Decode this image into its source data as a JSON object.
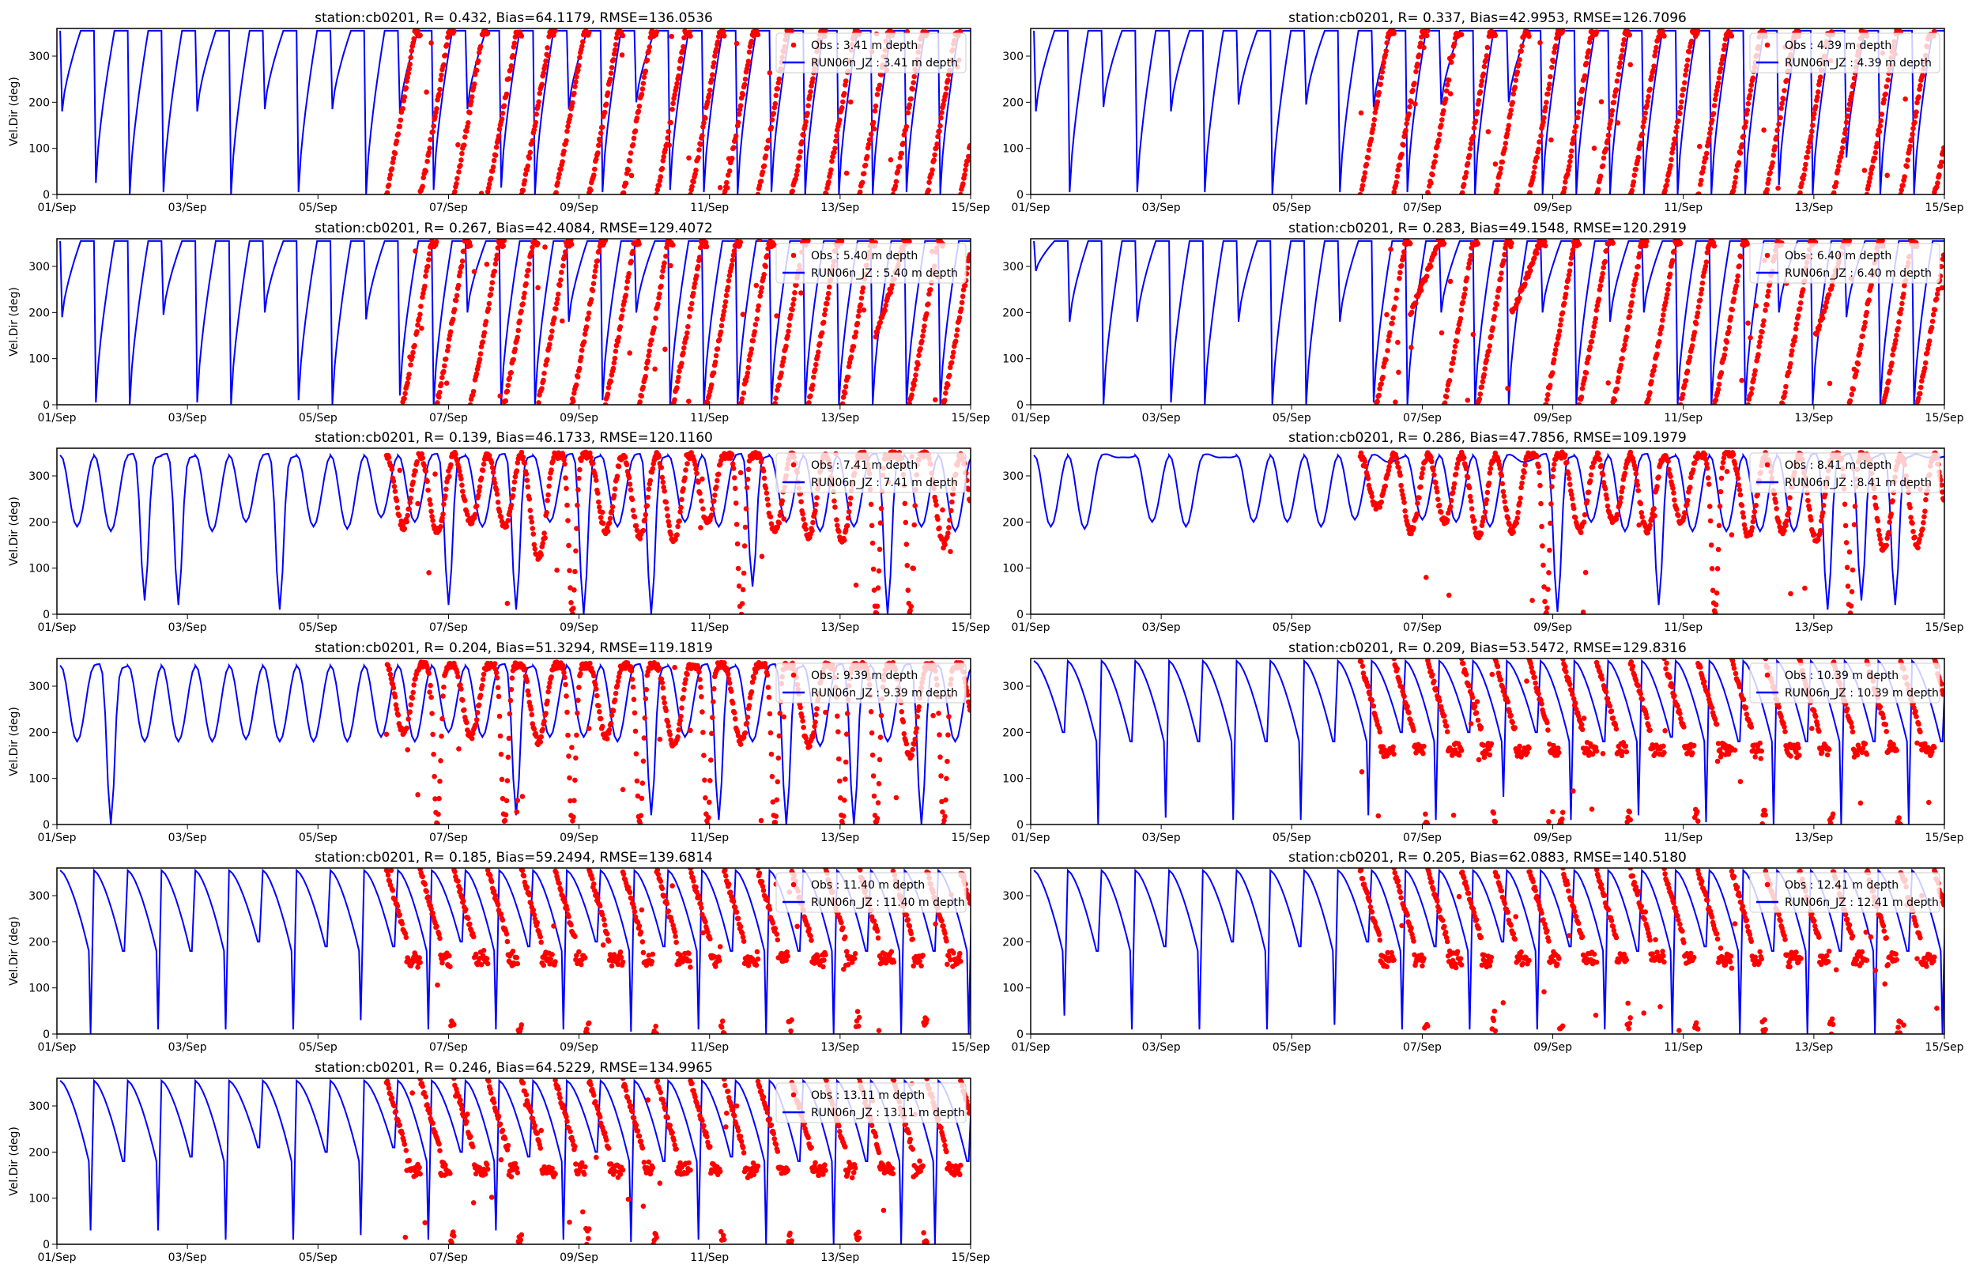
{
  "chart_data": [
    {
      "type": "line+scatter",
      "title": "station:cb0201, R= 0.432, Bias=64.1179, RMSE=136.0536",
      "ylabel": "Vel.Dir (deg)",
      "legend": [
        "Obs : 3.41 m depth",
        "RUN06n_JZ : 3.41 m depth"
      ],
      "shape": "rising",
      "model_trough_deg": [
        180,
        25,
        0,
        5,
        180,
        0,
        185,
        5,
        185,
        0,
        180,
        10,
        185,
        15,
        0,
        185,
        5,
        200,
        10,
        5,
        0,
        5,
        0,
        0,
        0,
        5,
        0
      ],
      "obs_start_day": 5.05,
      "obs_low_deg": [
        0,
        0,
        0,
        5,
        0,
        0,
        0,
        0,
        0,
        0,
        0,
        0,
        0,
        0,
        0,
        0,
        0,
        0
      ]
    },
    {
      "type": "line+scatter",
      "title": "station:cb0201, R= 0.337, Bias=42.9953, RMSE=126.7096",
      "ylabel": "",
      "legend": [
        "Obs : 4.39 m depth",
        "RUN06n_JZ : 4.39 m depth"
      ],
      "shape": "rising",
      "model_trough_deg": [
        180,
        5,
        190,
        5,
        180,
        5,
        195,
        0,
        195,
        5,
        190,
        5,
        195,
        0,
        200,
        0,
        0,
        0,
        0,
        0,
        0,
        0,
        20,
        0,
        80,
        0,
        0
      ],
      "obs_start_day": 5.05,
      "obs_low_deg": [
        0,
        10,
        0,
        0,
        0,
        0,
        0,
        0,
        0,
        0,
        0,
        0,
        0,
        0,
        0,
        0,
        0,
        0
      ]
    },
    {
      "type": "line+scatter",
      "title": "station:cb0201, R= 0.267, Bias=42.4084, RMSE=129.4072",
      "ylabel": "Vel.Dir (deg)",
      "legend": [
        "Obs : 5.40 m depth",
        "RUN06n_JZ : 5.40 m depth"
      ],
      "shape": "rising",
      "model_trough_deg": [
        190,
        5,
        0,
        195,
        5,
        0,
        200,
        10,
        0,
        185,
        20,
        0,
        200,
        0,
        0,
        180,
        10,
        200,
        0,
        0,
        0,
        0,
        0,
        0,
        0,
        0,
        0
      ],
      "obs_start_day": 5.3,
      "obs_low_deg": [
        0,
        0,
        0,
        0,
        0,
        0,
        0,
        0,
        0,
        0,
        0,
        0,
        0,
        0,
        150,
        0,
        0,
        0
      ]
    },
    {
      "type": "line+scatter",
      "title": "station:cb0201, R= 0.283, Bias=49.1548, RMSE=120.2919",
      "ylabel": "",
      "legend": [
        "Obs : 6.40 m depth",
        "RUN06n_JZ : 6.40 m depth"
      ],
      "shape": "rising",
      "model_trough_deg": [
        290,
        180,
        0,
        180,
        5,
        0,
        180,
        0,
        0,
        180,
        5,
        0,
        200,
        0,
        0,
        200,
        0,
        180,
        200,
        0,
        0,
        0,
        200,
        0,
        190,
        0,
        0
      ],
      "obs_start_day": 5.3,
      "obs_low_deg": [
        0,
        200,
        0,
        0,
        200,
        0,
        0,
        0,
        0,
        0,
        0,
        0,
        0,
        150,
        0,
        0,
        0,
        0
      ]
    },
    {
      "type": "line+scatter",
      "title": "station:cb0201, R= 0.139, Bias=46.1733, RMSE=120.1160",
      "ylabel": "Vel.Dir (deg)",
      "legend": [
        "Obs : 7.41 m depth",
        "RUN06n_JZ : 7.41 m depth"
      ],
      "shape": "dip",
      "model_trough_deg": [
        190,
        180,
        30,
        20,
        180,
        200,
        10,
        190,
        185,
        210,
        200,
        20,
        190,
        10,
        200,
        0,
        190,
        0,
        200,
        190,
        60,
        200,
        180,
        190,
        0,
        190,
        180
      ],
      "obs_start_day": 5.05,
      "obs_low_deg": [
        190,
        180,
        200,
        190,
        120,
        0,
        180,
        170,
        160,
        200,
        0,
        180,
        170,
        160,
        0,
        0,
        150,
        170
      ]
    },
    {
      "type": "line+scatter",
      "title": "station:cb0201, R= 0.286, Bias=47.7856, RMSE=109.1979",
      "ylabel": "",
      "legend": [
        "Obs : 8.41 m depth",
        "RUN06n_JZ : 8.41 m depth"
      ],
      "shape": "dip",
      "model_trough_deg": [
        190,
        185,
        340,
        200,
        190,
        340,
        200,
        200,
        190,
        205,
        330,
        205,
        200,
        190,
        330,
        5,
        200,
        180,
        20,
        180,
        180,
        180,
        180,
        10,
        30,
        20,
        340
      ],
      "obs_start_day": 5.05,
      "obs_low_deg": [
        230,
        180,
        200,
        170,
        180,
        0,
        180,
        200,
        180,
        200,
        0,
        170,
        180,
        160,
        0,
        140,
        150,
        170
      ]
    },
    {
      "type": "line+scatter",
      "title": "station:cb0201, R= 0.204, Bias=51.3294, RMSE=119.1819",
      "ylabel": "Vel.Dir (deg)",
      "legend": [
        "Obs : 9.39 m depth",
        "RUN06n_JZ : 9.39 m depth"
      ],
      "shape": "dip",
      "model_trough_deg": [
        180,
        0,
        180,
        180,
        180,
        185,
        180,
        180,
        180,
        190,
        180,
        200,
        190,
        20,
        190,
        190,
        180,
        20,
        190,
        10,
        180,
        0,
        170,
        0,
        180,
        0,
        180
      ],
      "obs_start_day": 5.05,
      "obs_low_deg": [
        200,
        0,
        190,
        0,
        180,
        0,
        190,
        0,
        170,
        0,
        180,
        0,
        170,
        0,
        0,
        150,
        0,
        170
      ]
    },
    {
      "type": "line+scatter",
      "title": "station:cb0201, R= 0.209, Bias=53.5472, RMSE=129.8316",
      "ylabel": "",
      "legend": [
        "Obs : 10.39 m depth",
        "RUN06n_JZ : 10.39 m depth"
      ],
      "shape": "falling",
      "model_trough_deg": [
        200,
        0,
        180,
        15,
        180,
        10,
        180,
        10,
        180,
        20,
        200,
        10,
        200,
        60,
        200,
        10,
        180,
        20,
        190,
        5,
        180,
        0,
        180,
        0,
        180,
        0,
        180
      ],
      "obs_start_day": 5.05,
      "obs_low_deg": [
        150,
        0,
        160,
        0,
        160,
        0,
        150,
        0,
        160,
        0,
        160,
        0,
        150,
        0,
        160,
        0,
        150,
        160
      ]
    },
    {
      "type": "line+scatter",
      "title": "station:cb0201, R= 0.185, Bias=59.2494, RMSE=139.6814",
      "ylabel": "Vel.Dir (deg)",
      "legend": [
        "Obs : 11.40 m depth",
        "RUN06n_JZ : 11.40 m depth"
      ],
      "shape": "falling",
      "model_trough_deg": [
        0,
        180,
        10,
        180,
        10,
        200,
        10,
        190,
        30,
        190,
        10,
        200,
        10,
        190,
        10,
        200,
        5,
        190,
        10,
        180,
        0,
        180,
        0,
        180,
        0,
        180,
        0
      ],
      "obs_start_day": 5.05,
      "obs_low_deg": [
        150,
        0,
        160,
        0,
        170,
        0,
        160,
        0,
        150,
        0,
        170,
        0,
        160,
        0,
        160,
        0,
        150,
        160
      ]
    },
    {
      "type": "line+scatter",
      "title": "station:cb0201, R= 0.205, Bias=62.0883, RMSE=140.5180",
      "ylabel": "",
      "legend": [
        "Obs : 12.41 m depth",
        "RUN06n_JZ : 12.41 m depth"
      ],
      "shape": "falling",
      "model_trough_deg": [
        40,
        180,
        10,
        190,
        10,
        200,
        10,
        190,
        20,
        200,
        10,
        190,
        10,
        200,
        10,
        190,
        10,
        180,
        0,
        190,
        0,
        180,
        0,
        180,
        0,
        180,
        0
      ],
      "obs_start_day": 5.05,
      "obs_low_deg": [
        150,
        0,
        150,
        0,
        160,
        0,
        160,
        0,
        150,
        0,
        160,
        0,
        150,
        0,
        150,
        0,
        160,
        150
      ]
    },
    {
      "type": "line+scatter",
      "title": "station:cb0201, R= 0.246, Bias=64.5229, RMSE=134.9965",
      "ylabel": "Vel.Dir (deg)",
      "legend": [
        "Obs : 13.11 m depth",
        "RUN06n_JZ : 13.11 m depth"
      ],
      "shape": "falling",
      "model_trough_deg": [
        30,
        180,
        30,
        190,
        10,
        210,
        10,
        200,
        20,
        210,
        10,
        200,
        30,
        190,
        10,
        200,
        5,
        180,
        10,
        190,
        0,
        180,
        0,
        180,
        0,
        0,
        180
      ],
      "obs_start_day": 5.05,
      "obs_low_deg": [
        150,
        0,
        160,
        0,
        160,
        0,
        150,
        0,
        160,
        0,
        160,
        0,
        150,
        0,
        160,
        0,
        150,
        140
      ]
    }
  ],
  "shared": {
    "x_unit": "days since 01/Sep",
    "xlim": [
      0,
      14
    ],
    "ylim": [
      0,
      360
    ],
    "x_ticks": [
      0,
      2,
      4,
      6,
      8,
      10,
      12,
      14
    ],
    "x_tick_labels": [
      "01/Sep",
      "03/Sep",
      "05/Sep",
      "07/Sep",
      "09/Sep",
      "11/Sep",
      "13/Sep",
      "15/Sep"
    ],
    "y_ticks": [
      0,
      100,
      200,
      300
    ],
    "tidal_period_days": 0.5175,
    "obs_color": "#ff0000",
    "model_color": "#0000ff",
    "legend_placement": "top-right"
  }
}
